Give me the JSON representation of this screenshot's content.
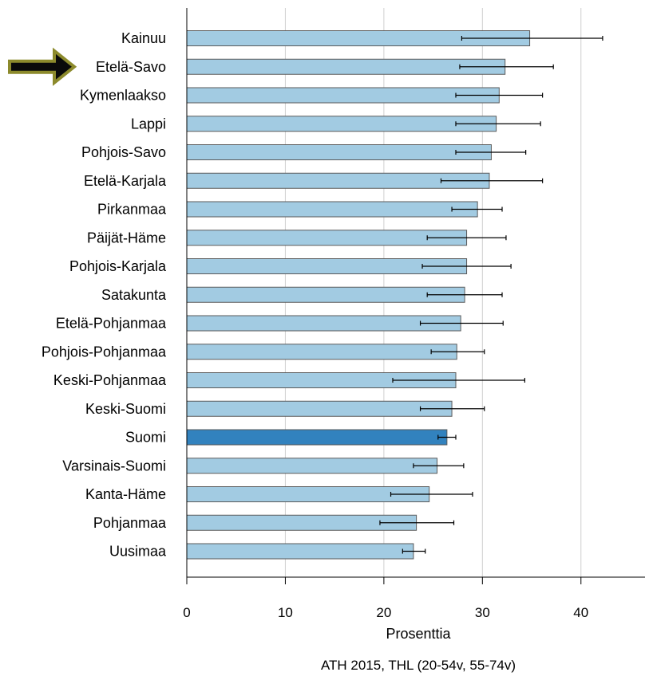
{
  "colors": {
    "bar": "#a2cbe2",
    "bar_highlight": "#3282be",
    "bar_border": "#5a5a5a",
    "grid": "#d0d0d0",
    "axis": "#000000",
    "arrow_fill": "#0a0a0a",
    "arrow_outline": "#8c8a2c"
  },
  "icons": {
    "highlight_marker": "right-arrow-icon"
  },
  "chart_data": {
    "type": "bar",
    "orientation": "horizontal",
    "categories": [
      "Kainuu",
      "Etelä-Savo",
      "Kymenlaakso",
      "Lappi",
      "Pohjois-Savo",
      "Etelä-Karjala",
      "Pirkanmaa",
      "Päijät-Häme",
      "Pohjois-Karjala",
      "Satakunta",
      "Etelä-Pohjanmaa",
      "Pohjois-Pohjanmaa",
      "Keski-Pohjanmaa",
      "Keski-Suomi",
      "Suomi",
      "Varsinais-Suomi",
      "Kanta-Häme",
      "Pohjanmaa",
      "Uusimaa"
    ],
    "values": [
      34.8,
      32.3,
      31.7,
      31.4,
      30.9,
      30.7,
      29.5,
      28.4,
      28.4,
      28.2,
      27.8,
      27.4,
      27.3,
      26.9,
      26.4,
      25.4,
      24.6,
      23.3,
      23.0
    ],
    "error_low": [
      27.9,
      27.7,
      27.3,
      27.3,
      27.3,
      25.8,
      26.9,
      24.4,
      23.9,
      24.4,
      23.7,
      24.8,
      20.9,
      23.7,
      25.5,
      23.0,
      20.7,
      19.6,
      21.9
    ],
    "error_high": [
      42.2,
      37.2,
      36.1,
      35.9,
      34.4,
      36.1,
      32.0,
      32.4,
      32.9,
      32.0,
      32.1,
      30.2,
      34.3,
      30.2,
      27.3,
      28.1,
      29.0,
      27.1,
      24.2
    ],
    "highlight_index": 14,
    "marked_index": 1,
    "xlabel": "Prosenttia",
    "xlim": [
      0,
      46.5
    ],
    "xticks": [
      0,
      10,
      20,
      30,
      40
    ],
    "grid": true,
    "source": "ATH 2015, THL (20-54v, 55-74v)"
  }
}
